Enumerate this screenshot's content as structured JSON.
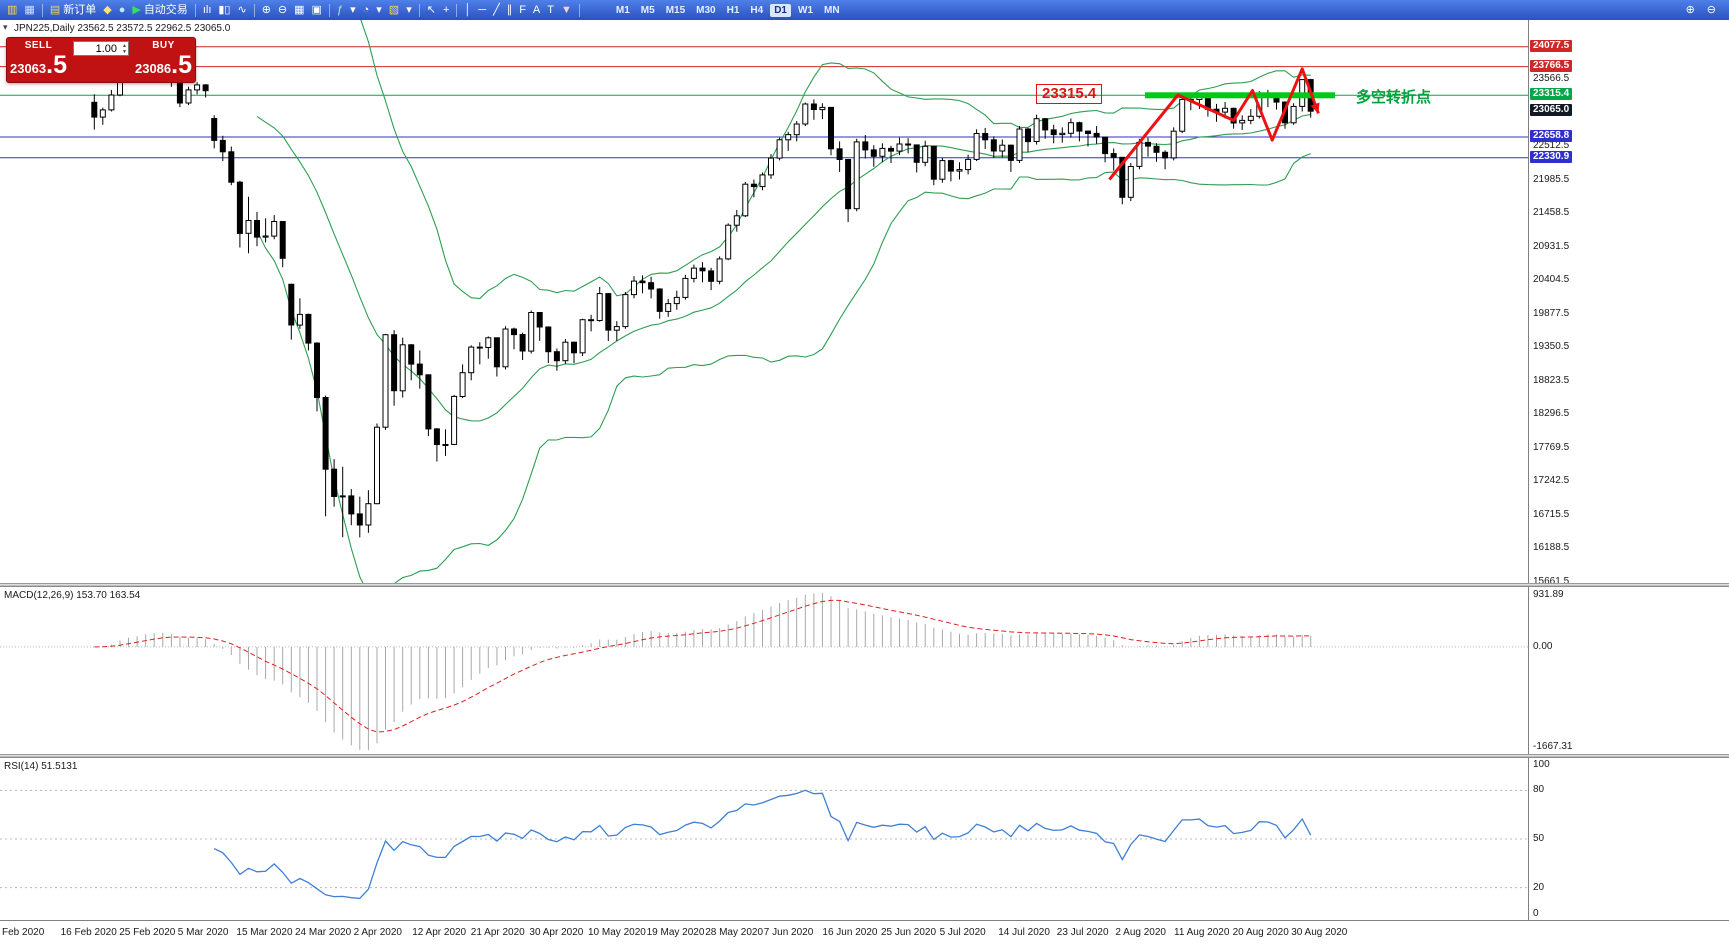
{
  "header": {
    "symbol_ohlc": "JPN225,Daily  23562.5 23572.5 22962.5 23065.0"
  },
  "indicator_labels": {
    "macd": "MACD(12,26,9) 153.70 163.54",
    "rsi": "RSI(14) 51.5131"
  },
  "annotations": {
    "price_label": "23315.4",
    "turning_point": "多空转折点"
  },
  "trade_panel": {
    "sell_label": "SELL",
    "buy_label": "BUY",
    "volume_value": "1.00",
    "sell_price": {
      "main": "23063",
      "big": ".5"
    },
    "buy_price": {
      "main": "23086",
      "big": ".5"
    }
  },
  "toolbar": {
    "items": [
      {
        "name": "new-chart-icon",
        "glyph": "▥",
        "color": "#ffd54a"
      },
      {
        "name": "profiles-icon",
        "glyph": "▦",
        "color": "#cfe0ff"
      },
      {
        "sep": true
      },
      {
        "name": "new-order-button",
        "glyph": "▤",
        "color": "#ffd54a",
        "label": "新订单"
      },
      {
        "name": "metaeditor-icon",
        "glyph": "◆",
        "color": "#ffe27a"
      },
      {
        "name": "options-icon",
        "glyph": "●",
        "color": "#bfe8ff"
      },
      {
        "name": "autotrading-button",
        "glyph": "▶",
        "color": "#35e05a",
        "label": "自动交易"
      },
      {
        "sep": true
      },
      {
        "name": "bar-chart-icon",
        "glyph": "ılı",
        "color": "#ffffff"
      },
      {
        "name": "candlestick-chart-icon",
        "glyph": "▮▯",
        "color": "#ffffff"
      },
      {
        "name": "line-chart-icon",
        "glyph": "∿",
        "color": "#ffffff"
      },
      {
        "sep": true
      },
      {
        "name": "zoom-in-icon",
        "glyph": "⊕",
        "color": "#ffffff"
      },
      {
        "name": "zoom-out-icon",
        "glyph": "⊖",
        "color": "#ffffff"
      },
      {
        "name": "tile-windows-icon",
        "glyph": "▦",
        "color": "#ffffff"
      },
      {
        "name": "arrange-windows-icon",
        "glyph": "▣",
        "color": "#ffffff"
      },
      {
        "sep": true
      },
      {
        "name": "indicators-icon",
        "glyph": "ƒ",
        "color": "#b4f0b4"
      },
      {
        "name": "indicators-dropdown-icon",
        "glyph": "▾",
        "color": "#ffffff"
      },
      {
        "name": "periods-icon",
        "glyph": "◔",
        "color": "#ffffff"
      },
      {
        "name": "periods-dropdown-icon",
        "glyph": "▾",
        "color": "#ffffff"
      },
      {
        "name": "templates-icon",
        "glyph": "▧",
        "color": "#ffd54a"
      },
      {
        "name": "templates-dropdown-icon",
        "glyph": "▾",
        "color": "#ffffff"
      },
      {
        "sep": true
      },
      {
        "name": "cursor-icon",
        "glyph": "↖",
        "color": "#ffffff"
      },
      {
        "name": "crosshair-icon",
        "glyph": "+",
        "color": "#ffffff"
      },
      {
        "sep": true
      },
      {
        "name": "vertical-line-icon",
        "glyph": "│",
        "color": "#ffffff"
      },
      {
        "name": "horizontal-line-icon",
        "glyph": "─",
        "color": "#ffffff"
      },
      {
        "name": "trendline-icon",
        "glyph": "╱",
        "color": "#ffffff"
      },
      {
        "name": "channel-icon",
        "glyph": "∥",
        "color": "#ffffff"
      },
      {
        "name": "fibonacci-icon",
        "glyph": "F",
        "color": "#ffffff"
      },
      {
        "name": "text-icon",
        "glyph": "A",
        "color": "#ffffff"
      },
      {
        "name": "text-label-icon",
        "glyph": "T",
        "color": "#ffffff"
      },
      {
        "name": "arrows-icon",
        "glyph": "▼",
        "color": "#ffd0d0"
      },
      {
        "sep": true
      }
    ],
    "timeframes": [
      {
        "label": "M1"
      },
      {
        "label": "M5"
      },
      {
        "label": "M15"
      },
      {
        "label": "M30"
      },
      {
        "label": "H1"
      },
      {
        "label": "H4"
      },
      {
        "label": "D1"
      },
      {
        "label": "W1"
      },
      {
        "label": "MN"
      }
    ],
    "active_timeframe": "D1",
    "right_items": [
      {
        "name": "magnifier-plus-icon",
        "glyph": "⊕"
      },
      {
        "name": "magnifier-minus-icon",
        "glyph": "⊖"
      }
    ]
  },
  "chart_data": {
    "type": "candlestick",
    "symbol": "JPN225",
    "timeframe": "Daily",
    "ohlc_header": {
      "open": 23562.5,
      "high": 23572.5,
      "low": 22962.5,
      "close": 23065.0
    },
    "scale": {
      "top": 24500,
      "bottom": 15640
    },
    "y_ticks": [
      23566.5,
      22512.5,
      21985.5,
      21458.5,
      20931.5,
      20404.5,
      19877.5,
      19350.5,
      18823.5,
      18296.5,
      17769.5,
      17242.5,
      16715.5,
      16188.5,
      15661.5
    ],
    "current_price": {
      "value": 23065.0,
      "badge_color": "#111a24"
    },
    "hlines": [
      {
        "value": 24077.5,
        "color": "#d02727",
        "label": "24077.5"
      },
      {
        "value": 23766.5,
        "color": "#d02727",
        "label": "23766.5"
      },
      {
        "value": 23315.4,
        "color": "#00a84a",
        "label": "23315.4"
      },
      {
        "value": 22658.8,
        "color": "#2f2fd0",
        "label": "22658.8"
      },
      {
        "value": 22330.9,
        "color": "#2f2fd0",
        "label": "22330.9"
      }
    ],
    "support_bar": {
      "value": 23315.4,
      "x_from": 1145,
      "x_to": 1335,
      "color": "#00c814",
      "thickness": 6
    },
    "zigzag": {
      "color": "#ee1111",
      "points": [
        [
          118.5,
          21990
        ],
        [
          126.5,
          23320
        ],
        [
          133,
          22920
        ],
        [
          135.2,
          23390
        ],
        [
          137.5,
          22610
        ],
        [
          141,
          23730
        ],
        [
          142.9,
          23030
        ]
      ]
    },
    "bollinger": {
      "period": 20,
      "deviation": 2,
      "color": "#2e9e52"
    },
    "macd": {
      "label": "MACD(12,26,9)",
      "values": [
        153.7,
        163.54
      ],
      "scale_max": 931.89,
      "scale_min": -1667.31,
      "axis_labels": [
        "931.89",
        "0.00",
        "-1667.31"
      ],
      "histogram_color": "#a8a8a8",
      "signal_color": "#e02020"
    },
    "rsi": {
      "label": "RSI(14)",
      "value": 51.5131,
      "levels": [
        80,
        50,
        20
      ],
      "axis_labels": [
        "100",
        "80",
        "50",
        "20",
        "0"
      ],
      "scale": [
        0,
        100
      ],
      "color": "#3f7fd6"
    },
    "x_labels": [
      "Feb 2020",
      "16 Feb 2020",
      "25 Feb 2020",
      "5 Mar 2020",
      "15 Mar 2020",
      "24 Mar 2020",
      "2 Apr 2020",
      "12 Apr 2020",
      "21 Apr 2020",
      "30 Apr 2020",
      "10 May 2020",
      "19 May 2020",
      "28 May 2020",
      "7 Jun 2020",
      "16 Jun 2020",
      "25 Jun 2020",
      "5 Jul 2020",
      "14 Jul 2020",
      "23 Jul 2020",
      "2 Aug 2020",
      "11 Aug 2020",
      "20 Aug 2020",
      "30 Aug 2020"
    ],
    "candles": [
      [
        23205,
        23330,
        22775,
        22972
      ],
      [
        22972,
        23120,
        22850,
        23085
      ],
      [
        23085,
        23400,
        23060,
        23320
      ],
      [
        23320,
        23910,
        23300,
        23874
      ],
      [
        23874,
        23950,
        23700,
        23828
      ],
      [
        23828,
        23870,
        23580,
        23686
      ],
      [
        23686,
        23880,
        23650,
        23861
      ],
      [
        23861,
        23910,
        23740,
        23828
      ],
      [
        23828,
        23860,
        23590,
        23687
      ],
      [
        23687,
        23710,
        23450,
        23523
      ],
      [
        23523,
        23530,
        23130,
        23194
      ],
      [
        23194,
        23450,
        23160,
        23400
      ],
      [
        23400,
        23520,
        23330,
        23479
      ],
      [
        23479,
        23490,
        23280,
        23387
      ],
      [
        22950,
        23000,
        22480,
        22605
      ],
      [
        22605,
        22680,
        22280,
        22426
      ],
      [
        22426,
        22510,
        21900,
        21948
      ],
      [
        21948,
        21970,
        20920,
        21143
      ],
      [
        21143,
        21720,
        20830,
        21344
      ],
      [
        21344,
        21480,
        20940,
        21083
      ],
      [
        21083,
        21380,
        21000,
        21100
      ],
      [
        21100,
        21430,
        21050,
        21329
      ],
      [
        21329,
        21330,
        20610,
        20750
      ],
      [
        20340,
        20350,
        19470,
        19699
      ],
      [
        19699,
        20120,
        19640,
        19867
      ],
      [
        19867,
        19880,
        19300,
        19416
      ],
      [
        19416,
        19430,
        18340,
        18560
      ],
      [
        18560,
        18590,
        16690,
        17431
      ],
      [
        17431,
        17590,
        16840,
        17002
      ],
      [
        17002,
        17470,
        16360,
        17011
      ],
      [
        17011,
        17120,
        16550,
        16727
      ],
      [
        16727,
        17000,
        16358,
        16553
      ],
      [
        16553,
        17100,
        16430,
        16888
      ],
      [
        16888,
        18150,
        16880,
        18092
      ],
      [
        18092,
        19560,
        18050,
        19547
      ],
      [
        19547,
        19620,
        18430,
        18665
      ],
      [
        18665,
        19500,
        18560,
        19389
      ],
      [
        19389,
        19400,
        18830,
        19085
      ],
      [
        19085,
        19300,
        18700,
        18917
      ],
      [
        18917,
        18920,
        17950,
        18065
      ],
      [
        18065,
        18080,
        17550,
        17819
      ],
      [
        17819,
        18060,
        17640,
        17820
      ],
      [
        17820,
        18600,
        17810,
        18576
      ],
      [
        18576,
        19080,
        18550,
        18950
      ],
      [
        18950,
        19380,
        18830,
        19353
      ],
      [
        19353,
        19430,
        19080,
        19346
      ],
      [
        19346,
        19520,
        19170,
        19499
      ],
      [
        19499,
        19500,
        18890,
        19043
      ],
      [
        19043,
        19680,
        19000,
        19638
      ],
      [
        19638,
        19660,
        19320,
        19550
      ],
      [
        19550,
        19580,
        19150,
        19290
      ],
      [
        19290,
        19930,
        19250,
        19897
      ],
      [
        19897,
        19900,
        19450,
        19669
      ],
      [
        19669,
        19680,
        19100,
        19280
      ],
      [
        19280,
        19330,
        18980,
        19138
      ],
      [
        19138,
        19480,
        19090,
        19429
      ],
      [
        19429,
        19440,
        19100,
        19262
      ],
      [
        19262,
        19800,
        19210,
        19783
      ],
      [
        19783,
        19860,
        19600,
        19771
      ],
      [
        19771,
        20300,
        19750,
        20194
      ],
      [
        20194,
        20200,
        19450,
        19619
      ],
      [
        19619,
        19760,
        19450,
        19675
      ],
      [
        19675,
        20220,
        19640,
        20179
      ],
      [
        20179,
        20470,
        20120,
        20391
      ],
      [
        20391,
        20480,
        20200,
        20366
      ],
      [
        20366,
        20460,
        20120,
        20267
      ],
      [
        20267,
        20280,
        19800,
        19915
      ],
      [
        19915,
        20110,
        19830,
        20037
      ],
      [
        20037,
        20240,
        19940,
        20134
      ],
      [
        20134,
        20490,
        20100,
        20433
      ],
      [
        20433,
        20650,
        20370,
        20595
      ],
      [
        20595,
        20690,
        20370,
        20552
      ],
      [
        20552,
        20600,
        20250,
        20388
      ],
      [
        20388,
        20780,
        20340,
        20741
      ],
      [
        20741,
        21300,
        20720,
        21271
      ],
      [
        21271,
        21510,
        21170,
        21419
      ],
      [
        21419,
        21950,
        21400,
        21916
      ],
      [
        21916,
        21990,
        21710,
        21878
      ],
      [
        21878,
        22100,
        21820,
        22062
      ],
      [
        22062,
        22390,
        22000,
        22326
      ],
      [
        22326,
        22650,
        22290,
        22614
      ],
      [
        22614,
        22740,
        22440,
        22696
      ],
      [
        22696,
        22910,
        22590,
        22864
      ],
      [
        22864,
        23200,
        22830,
        23178
      ],
      [
        23178,
        23250,
        22930,
        23091
      ],
      [
        23091,
        23190,
        22940,
        23125
      ],
      [
        23125,
        23130,
        22370,
        22473
      ],
      [
        22473,
        22590,
        22110,
        22305
      ],
      [
        22305,
        22310,
        21320,
        21531
      ],
      [
        21531,
        22630,
        21490,
        22582
      ],
      [
        22582,
        22690,
        22320,
        22456
      ],
      [
        22456,
        22530,
        22190,
        22355
      ],
      [
        22355,
        22560,
        22260,
        22479
      ],
      [
        22479,
        22520,
        22250,
        22437
      ],
      [
        22437,
        22650,
        22370,
        22549
      ],
      [
        22549,
        22640,
        22400,
        22534
      ],
      [
        22534,
        22540,
        22100,
        22260
      ],
      [
        22260,
        22600,
        22200,
        22512
      ],
      [
        22512,
        22520,
        21900,
        21995
      ],
      [
        21995,
        22330,
        21940,
        22288
      ],
      [
        22288,
        22300,
        21960,
        22122
      ],
      [
        22122,
        22260,
        21990,
        22146
      ],
      [
        22146,
        22380,
        22070,
        22306
      ],
      [
        22306,
        22780,
        22280,
        22714
      ],
      [
        22714,
        22800,
        22470,
        22615
      ],
      [
        22615,
        22670,
        22330,
        22439
      ],
      [
        22439,
        22620,
        22340,
        22530
      ],
      [
        22530,
        22540,
        22110,
        22291
      ],
      [
        22291,
        22830,
        22250,
        22785
      ],
      [
        22785,
        22800,
        22420,
        22587
      ],
      [
        22587,
        23010,
        22540,
        22946
      ],
      [
        22946,
        22960,
        22630,
        22770
      ],
      [
        22770,
        22850,
        22560,
        22696
      ],
      [
        22696,
        22810,
        22570,
        22717
      ],
      [
        22717,
        22950,
        22650,
        22884
      ],
      [
        22884,
        22900,
        22590,
        22752
      ],
      [
        22752,
        22760,
        22510,
        22715
      ],
      [
        22715,
        22830,
        22550,
        22657
      ],
      [
        22657,
        22660,
        22260,
        22397
      ],
      [
        22397,
        22480,
        22130,
        22339
      ],
      [
        22339,
        22340,
        21600,
        21710
      ],
      [
        21710,
        22250,
        21650,
        22195
      ],
      [
        22195,
        22630,
        22150,
        22573
      ],
      [
        22573,
        22650,
        22350,
        22514
      ],
      [
        22514,
        22560,
        22270,
        22418
      ],
      [
        22418,
        22450,
        22150,
        22330
      ],
      [
        22330,
        22810,
        22290,
        22750
      ],
      [
        22750,
        23340,
        22720,
        23249
      ],
      [
        23249,
        23330,
        23080,
        23250
      ],
      [
        23250,
        23340,
        23100,
        23289
      ],
      [
        23289,
        23290,
        22980,
        23096
      ],
      [
        23096,
        23180,
        22900,
        23051
      ],
      [
        23051,
        23210,
        22950,
        23111
      ],
      [
        23111,
        23120,
        22790,
        22880
      ],
      [
        22880,
        23000,
        22770,
        22920
      ],
      [
        22920,
        23100,
        22860,
        22985
      ],
      [
        22985,
        23380,
        22950,
        23296
      ],
      [
        23296,
        23400,
        23130,
        23290
      ],
      [
        23290,
        23330,
        23090,
        23208
      ],
      [
        23208,
        23220,
        22790,
        22882
      ],
      [
        22882,
        23190,
        22850,
        23140
      ],
      [
        23140,
        23570,
        23060,
        23562
      ],
      [
        23562.5,
        23572.5,
        22962.5,
        23065
      ]
    ]
  }
}
